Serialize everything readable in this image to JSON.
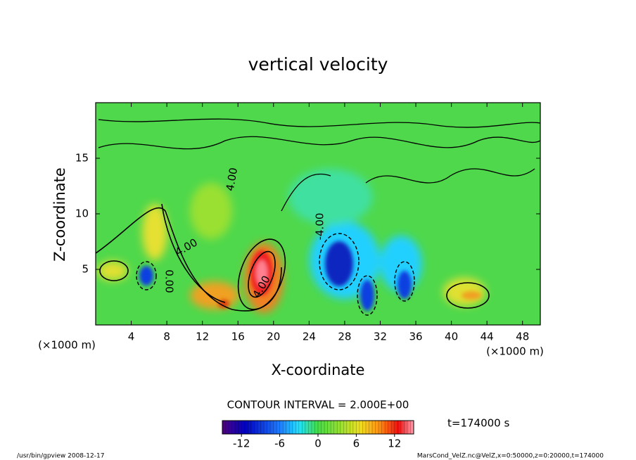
{
  "chart_data": {
    "type": "contour",
    "title": "vertical velocity",
    "x_label": "X-coordinate",
    "y_label": "Z-coordinate",
    "x_unit": "(×1000 m)",
    "y_unit": "(×1000 m)",
    "xlim": [
      0,
      50
    ],
    "ylim": [
      0,
      20
    ],
    "xticks": [
      4,
      8,
      12,
      16,
      20,
      24,
      28,
      32,
      36,
      40,
      44,
      48
    ],
    "yticks": [
      5,
      10,
      15
    ],
    "contour_labels": [
      "4.00",
      "4.00",
      "4.00",
      "-4.00",
      "0.00"
    ],
    "contour_interval": "CONTOUR INTERVAL = 2.000E+00",
    "time_label": "t=174000 s",
    "colorbar": {
      "lim": [
        -15,
        15
      ],
      "ticks": [
        -12,
        -6,
        0,
        6,
        12
      ]
    },
    "footer_left": "/usr/bin/gpview  2008-12-17",
    "footer_right": "MarsCond_VelZ.nc@VelZ,x=0:50000,z=0:20000,t=174000"
  }
}
